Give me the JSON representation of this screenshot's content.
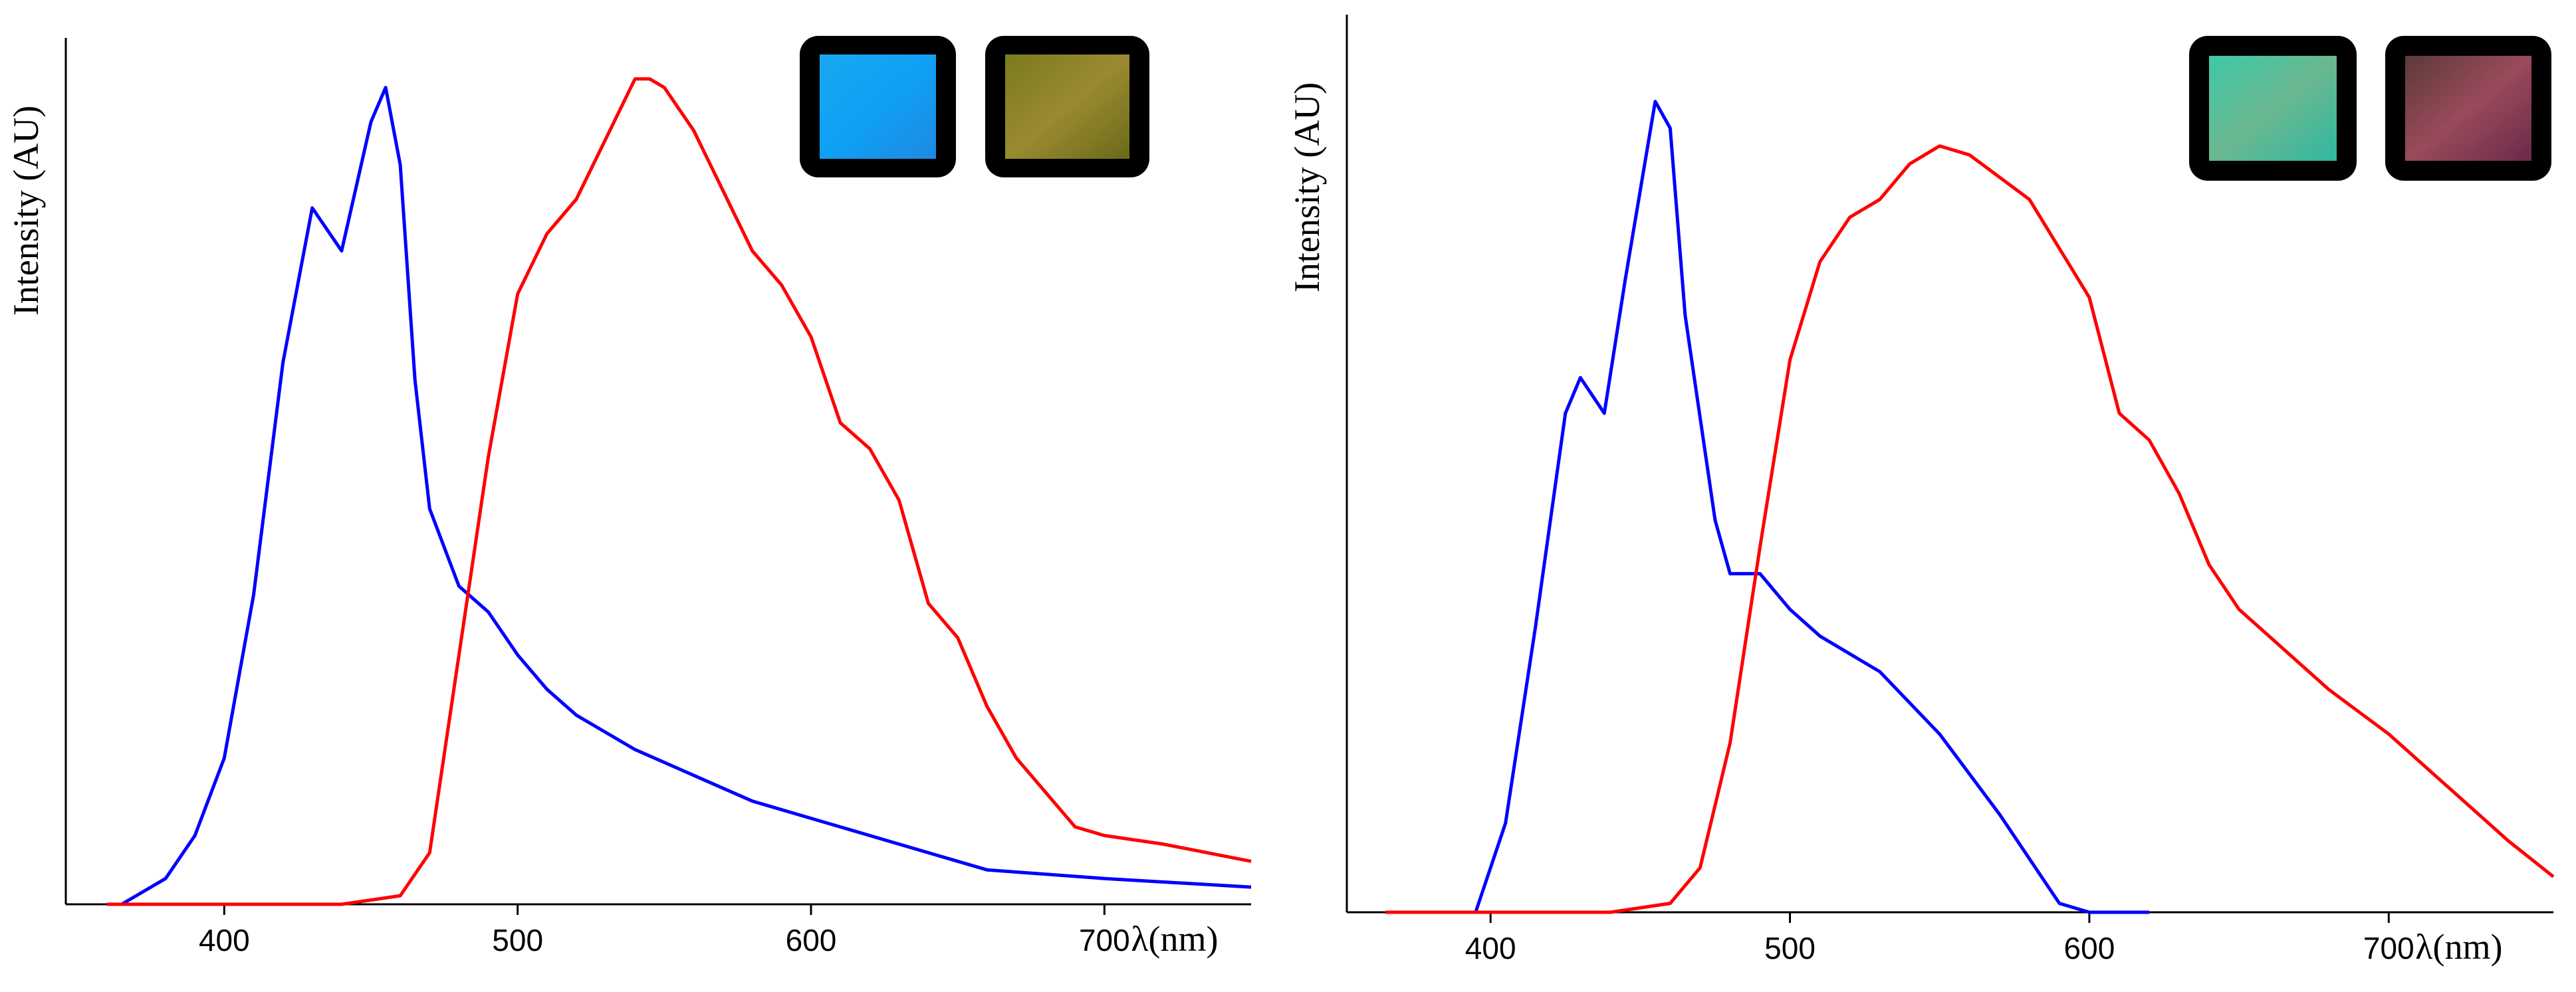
{
  "chart_data": [
    {
      "type": "line",
      "y_label": "Intensity (AU)",
      "x_label": "λ(nm)",
      "xlim": [
        346,
        750
      ],
      "ylim": [
        0,
        1
      ],
      "xticks": [
        400,
        500,
        600,
        700
      ],
      "series": [
        {
          "color": "#0000ff",
          "x": [
            365,
            370,
            380,
            390,
            400,
            410,
            420,
            430,
            440,
            450,
            455,
            460,
            465,
            470,
            480,
            490,
            500,
            510,
            520,
            540,
            560,
            580,
            600,
            620,
            640,
            660,
            700,
            750
          ],
          "values": [
            0,
            0.01,
            0.03,
            0.08,
            0.17,
            0.36,
            0.63,
            0.81,
            0.76,
            0.91,
            0.95,
            0.86,
            0.61,
            0.46,
            0.37,
            0.34,
            0.29,
            0.25,
            0.22,
            0.18,
            0.15,
            0.12,
            0.1,
            0.08,
            0.06,
            0.04,
            0.03,
            0.02
          ]
        },
        {
          "color": "#ff0000",
          "x": [
            360,
            440,
            460,
            470,
            480,
            490,
            500,
            510,
            520,
            530,
            540,
            545,
            550,
            560,
            570,
            580,
            590,
            600,
            610,
            620,
            630,
            640,
            650,
            660,
            670,
            680,
            690,
            700,
            720,
            750
          ],
          "values": [
            0,
            0,
            0.01,
            0.06,
            0.29,
            0.52,
            0.71,
            0.78,
            0.82,
            0.89,
            0.96,
            0.96,
            0.95,
            0.9,
            0.83,
            0.76,
            0.72,
            0.66,
            0.56,
            0.53,
            0.47,
            0.35,
            0.31,
            0.23,
            0.17,
            0.13,
            0.09,
            0.08,
            0.07,
            0.05
          ]
        }
      ]
    },
    {
      "type": "line",
      "y_label": "Intensity (AU)",
      "x_label": "λ(nm)",
      "xlim": [
        352,
        755
      ],
      "ylim": [
        0,
        1
      ],
      "xticks": [
        400,
        500,
        600,
        700
      ],
      "series": [
        {
          "color": "#0000ff",
          "x": [
            395,
            405,
            415,
            425,
            430,
            438,
            445,
            455,
            460,
            465,
            475,
            480,
            490,
            500,
            510,
            530,
            550,
            570,
            590,
            600,
            620
          ],
          "values": [
            0,
            0.1,
            0.32,
            0.56,
            0.6,
            0.56,
            0.71,
            0.91,
            0.88,
            0.67,
            0.44,
            0.38,
            0.38,
            0.34,
            0.31,
            0.27,
            0.2,
            0.11,
            0.01,
            0,
            0
          ]
        },
        {
          "color": "#ff0000",
          "x": [
            365,
            440,
            460,
            470,
            480,
            490,
            500,
            510,
            520,
            530,
            540,
            550,
            560,
            580,
            600,
            610,
            620,
            630,
            640,
            650,
            660,
            680,
            700,
            720,
            740,
            755
          ],
          "values": [
            0,
            0,
            0.01,
            0.05,
            0.19,
            0.41,
            0.62,
            0.73,
            0.78,
            0.8,
            0.84,
            0.86,
            0.85,
            0.8,
            0.69,
            0.56,
            0.53,
            0.47,
            0.39,
            0.34,
            0.31,
            0.25,
            0.2,
            0.14,
            0.08,
            0.04
          ]
        }
      ]
    }
  ]
}
